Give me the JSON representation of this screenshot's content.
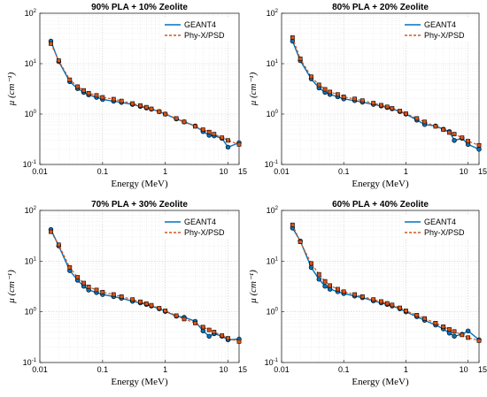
{
  "colors": {
    "geant4": "#0072BD",
    "phyx": "#D95319"
  },
  "chart_data": [
    {
      "type": "line",
      "title": "90% PLA + 10% Zeolite",
      "xlabel": "Energy (MeV)",
      "ylabel": "μ (cm⁻¹)",
      "xscale": "log",
      "yscale": "log",
      "xlim": [
        0.01,
        15
      ],
      "ylim": [
        0.1,
        100
      ],
      "xticks": [
        "0.01",
        "0.1",
        "1",
        "10",
        "15"
      ],
      "yticks": [
        "10",
        "10",
        "10",
        "10"
      ],
      "ytick_exponents": [
        "-1",
        "0",
        "1",
        "2"
      ],
      "grid": true,
      "legend_position": "top-right",
      "x": [
        0.015,
        0.02,
        0.03,
        0.04,
        0.05,
        0.06,
        0.08,
        0.1,
        0.15,
        0.2,
        0.3,
        0.4,
        0.5,
        0.6,
        0.8,
        1,
        1.5,
        2,
        3,
        4,
        5,
        6,
        8,
        10,
        15
      ],
      "series": [
        {
          "name": "GEANT4",
          "values": [
            28,
            11,
            4.4,
            3.2,
            2.7,
            2.4,
            2.15,
            1.95,
            1.8,
            1.7,
            1.55,
            1.42,
            1.32,
            1.25,
            1.12,
            1.0,
            0.8,
            0.7,
            0.58,
            0.45,
            0.38,
            0.37,
            0.33,
            0.22,
            0.27
          ]
        },
        {
          "name": "Phy-X/PSD",
          "values": [
            25,
            11.5,
            4.8,
            3.5,
            2.95,
            2.6,
            2.35,
            2.15,
            1.98,
            1.82,
            1.62,
            1.48,
            1.37,
            1.27,
            1.12,
            1.0,
            0.82,
            0.7,
            0.57,
            0.49,
            0.44,
            0.4,
            0.34,
            0.3,
            0.25
          ]
        }
      ]
    },
    {
      "type": "line",
      "title": "80% PLA + 20% Zeolite",
      "xlabel": "Energy (MeV)",
      "ylabel": "μ (cm⁻¹)",
      "xscale": "log",
      "yscale": "log",
      "xlim": [
        0.01,
        15
      ],
      "ylim": [
        0.1,
        100
      ],
      "xticks": [
        "0.01",
        "0.1",
        "1",
        "10",
        "15"
      ],
      "yticks": [
        "10",
        "10",
        "10",
        "10"
      ],
      "ytick_exponents": [
        "-1",
        "0",
        "1",
        "2"
      ],
      "grid": true,
      "legend_position": "top-right",
      "x": [
        0.015,
        0.02,
        0.03,
        0.04,
        0.05,
        0.06,
        0.08,
        0.1,
        0.15,
        0.2,
        0.3,
        0.4,
        0.5,
        0.6,
        0.8,
        1,
        1.5,
        2,
        3,
        4,
        5,
        6,
        8,
        10,
        15
      ],
      "series": [
        {
          "name": "GEANT4",
          "values": [
            28,
            11.5,
            5.0,
            3.3,
            2.7,
            2.45,
            2.2,
            2.0,
            1.85,
            1.72,
            1.55,
            1.45,
            1.35,
            1.27,
            1.12,
            1.0,
            0.76,
            0.62,
            0.58,
            0.5,
            0.45,
            0.3,
            0.33,
            0.25,
            0.2
          ]
        },
        {
          "name": "Phy-X/PSD",
          "values": [
            33,
            12.5,
            5.5,
            3.8,
            3.1,
            2.75,
            2.45,
            2.2,
            2.0,
            1.85,
            1.65,
            1.5,
            1.39,
            1.3,
            1.15,
            1.02,
            0.82,
            0.7,
            0.57,
            0.49,
            0.43,
            0.4,
            0.34,
            0.29,
            0.24
          ]
        }
      ]
    },
    {
      "type": "line",
      "title": "70% PLA + 30% Zeolite",
      "xlabel": "Energy (MeV)",
      "ylabel": "μ (cm⁻¹)",
      "xscale": "log",
      "yscale": "log",
      "xlim": [
        0.01,
        15
      ],
      "ylim": [
        0.1,
        100
      ],
      "xticks": [
        "0.01",
        "0.1",
        "1",
        "10",
        "15"
      ],
      "yticks": [
        "10",
        "10",
        "10",
        "10"
      ],
      "ytick_exponents": [
        "-1",
        "0",
        "1",
        "2"
      ],
      "grid": true,
      "legend_position": "top-right",
      "x": [
        0.015,
        0.02,
        0.03,
        0.04,
        0.05,
        0.06,
        0.08,
        0.1,
        0.15,
        0.2,
        0.3,
        0.4,
        0.5,
        0.6,
        0.8,
        1,
        1.5,
        2,
        3,
        4,
        5,
        6,
        8,
        10,
        15
      ],
      "series": [
        {
          "name": "GEANT4",
          "values": [
            42,
            20,
            6.5,
            4.2,
            3.2,
            2.7,
            2.4,
            2.2,
            2.0,
            1.85,
            1.62,
            1.5,
            1.4,
            1.3,
            1.15,
            1.02,
            0.82,
            0.78,
            0.65,
            0.42,
            0.33,
            0.37,
            0.33,
            0.28,
            0.29
          ]
        },
        {
          "name": "Phy-X/PSD",
          "values": [
            38,
            21,
            7.5,
            4.8,
            3.7,
            3.1,
            2.7,
            2.45,
            2.2,
            2.0,
            1.75,
            1.58,
            1.45,
            1.35,
            1.18,
            1.05,
            0.84,
            0.72,
            0.6,
            0.5,
            0.44,
            0.4,
            0.34,
            0.3,
            0.26
          ]
        }
      ]
    },
    {
      "type": "line",
      "title": "60% PLA + 40% Zeolite",
      "xlabel": "Energy (MeV)",
      "ylabel": "μ (cm⁻¹)",
      "xscale": "log",
      "yscale": "log",
      "xlim": [
        0.01,
        15
      ],
      "ylim": [
        0.1,
        100
      ],
      "xticks": [
        "0.01",
        "0.1",
        "1",
        "10",
        "15"
      ],
      "yticks": [
        "10",
        "10",
        "10",
        "10"
      ],
      "ytick_exponents": [
        "-1",
        "0",
        "1",
        "2"
      ],
      "grid": true,
      "legend_position": "top-right",
      "x": [
        0.015,
        0.02,
        0.03,
        0.04,
        0.05,
        0.06,
        0.08,
        0.1,
        0.15,
        0.2,
        0.3,
        0.4,
        0.5,
        0.6,
        0.8,
        1,
        1.5,
        2,
        3,
        4,
        5,
        6,
        8,
        10,
        15
      ],
      "series": [
        {
          "name": "GEANT4",
          "values": [
            45,
            25,
            7.5,
            4.4,
            3.2,
            2.8,
            2.5,
            2.3,
            2.05,
            1.9,
            1.65,
            1.5,
            1.4,
            1.3,
            1.15,
            1.0,
            0.8,
            0.68,
            0.55,
            0.46,
            0.38,
            0.33,
            0.36,
            0.42,
            0.28
          ]
        },
        {
          "name": "Phy-X/PSD",
          "values": [
            52,
            24,
            9.0,
            5.5,
            4.0,
            3.3,
            2.8,
            2.5,
            2.2,
            2.0,
            1.75,
            1.6,
            1.47,
            1.37,
            1.2,
            1.05,
            0.86,
            0.74,
            0.6,
            0.51,
            0.45,
            0.41,
            0.35,
            0.31,
            0.27
          ]
        }
      ]
    }
  ]
}
